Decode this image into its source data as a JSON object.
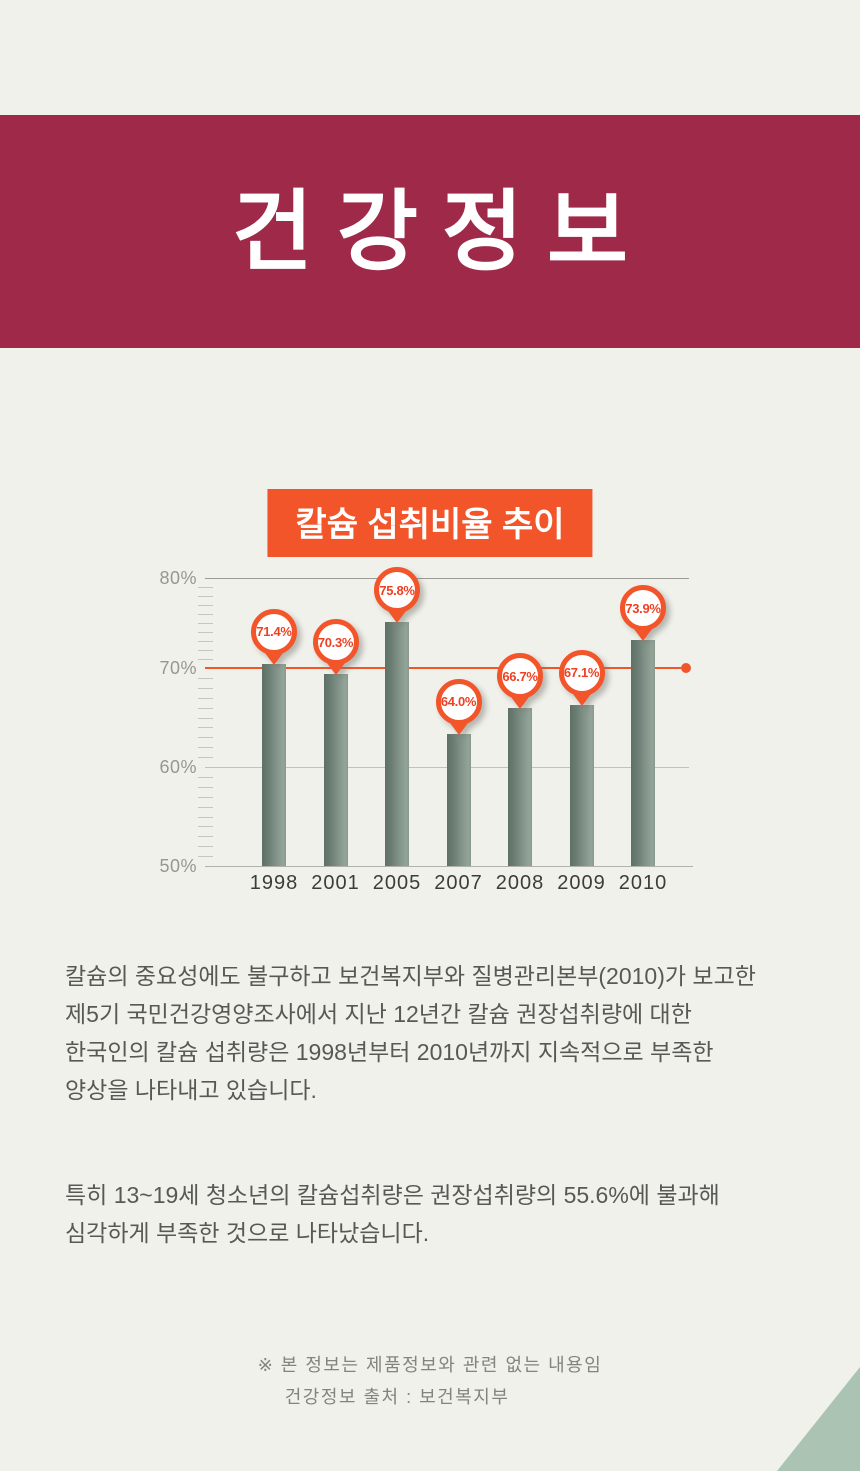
{
  "colors": {
    "page_bg": "#f1f1ec",
    "banner_bg": "#9f2949",
    "accent_orange": "#f3552b",
    "balloon_text": "#ef4023",
    "bar_green_dark": "#5e7167",
    "bar_green_light": "#93a498",
    "corner_triangle": "#abc3b2"
  },
  "header": {
    "title": "건강정보"
  },
  "chart_data": {
    "type": "bar",
    "title": "칼슘 섭취비율 추이",
    "categories": [
      "1998",
      "2001",
      "2005",
      "2007",
      "2008",
      "2009",
      "2010"
    ],
    "values": [
      71.4,
      70.3,
      75.8,
      64.0,
      66.7,
      67.1,
      73.9
    ],
    "value_labels": [
      "71.4%",
      "70.3%",
      "75.8%",
      "64.0%",
      "66.7%",
      "67.1%",
      "73.9%"
    ],
    "xlabel": "",
    "ylabel": "",
    "ylim": [
      50,
      80
    ],
    "ytick_labels": [
      "80%",
      "70%",
      "60%",
      "50%"
    ],
    "reference_line_value": 70,
    "grid": true,
    "legend": false
  },
  "body": {
    "paragraph1_lines": [
      "칼슘의 중요성에도 불구하고 보건복지부와 질병관리본부(2010)가 보고한",
      "제5기 국민건강영양조사에서 지난 12년간 칼슘 권장섭취량에 대한",
      "한국인의 칼슘 섭취량은 1998년부터 2010년까지 지속적으로 부족한",
      "양상을 나타내고 있습니다."
    ],
    "paragraph2_lines": [
      "특히 13~19세 청소년의 칼슘섭취량은 권장섭취량의 55.6%에 불과해",
      "심각하게 부족한 것으로 나타났습니다."
    ]
  },
  "footer": {
    "note_line1": "※ 본 정보는 제품정보와 관련 없는 내용임",
    "note_line2": "건강정보 출처 : 보건복지부"
  }
}
